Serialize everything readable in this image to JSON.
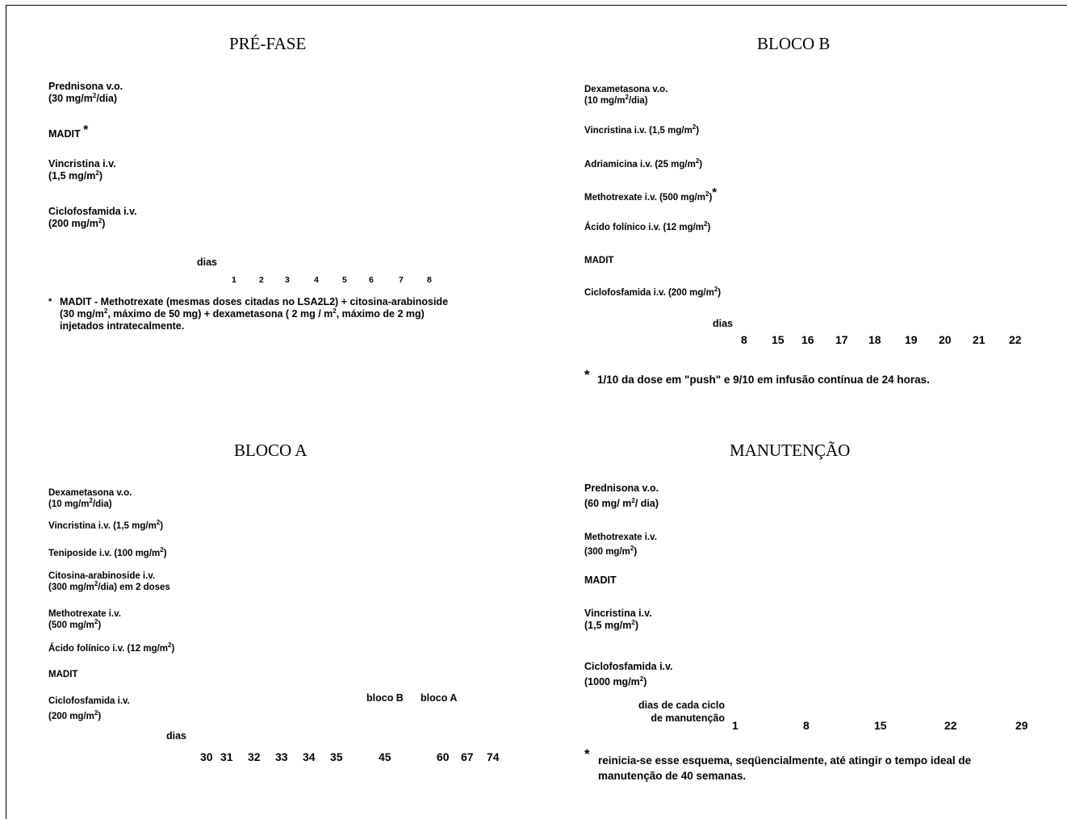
{
  "prefase": {
    "title": "PRÉ-FASE",
    "drugs": [
      {
        "line1": "Prednisona v.o.",
        "line2a": "(30 mg/m",
        "sup": "2",
        "line2b": "/dia)"
      },
      {
        "name": "MADIT",
        "star": "*"
      },
      {
        "line1": "Vincristina  i.v.",
        "line2a": "(1,5 mg/m",
        "sup": "2",
        "line2b": ")"
      },
      {
        "line1": "Ciclofosfamida  i.v.",
        "line2a": "(200 mg/m",
        "sup": "2",
        "line2b": ")"
      }
    ],
    "dias_label": "dias",
    "days": [
      "1",
      "2",
      "3",
      "4",
      "5",
      "6",
      "7",
      "8"
    ],
    "footnote": {
      "star": "*",
      "l1": "MADIT - Methotrexate (mesmas doses citadas no LSA2L2) + citosina-arabinoside",
      "l2a": "(30 mg/m",
      "sup1": "2",
      "l2b": ", máximo de 50 mg) + dexametasona ( 2 mg / m",
      "sup2": "2",
      "l2c": ", máximo de 2 mg)",
      "l3": "injetados intratecalmente."
    }
  },
  "blocob": {
    "title": "BLOCO B",
    "drugs": [
      {
        "line1": "Dexametasona  v.o.",
        "line2a": "(10 mg/m",
        "sup": "2",
        "line2b": "/dia)"
      },
      {
        "a": "Vincristina  i.v. (1,5 mg/m",
        "sup": "2",
        "b": ")"
      },
      {
        "a": "Adriamicina i.v. (25 mg/m",
        "sup": "2",
        "b": ")"
      },
      {
        "a": "Methotrexate  i.v. (500 mg/m",
        "sup": "2",
        "b": ")",
        "star": "*"
      },
      {
        "a": "Ácido folínico i.v. (12 mg/m",
        "sup": "2",
        "b": ")"
      },
      {
        "name": "MADIT"
      },
      {
        "a": "Ciclofosfamida i.v. (200 mg/m",
        "sup": "2",
        "b": ")"
      }
    ],
    "dias_label": "dias",
    "days": [
      "8",
      "15",
      "16",
      "17",
      "18",
      "19",
      "20",
      "21",
      "22"
    ],
    "footnote": {
      "star": "*",
      "text": "1/10 da dose em \"push\" e 9/10 em infusão contínua de 24 horas."
    }
  },
  "blocoa": {
    "title": "BLOCO A",
    "drugs": [
      {
        "line1": "Dexametasona  v.o.",
        "line2a": "(10 mg/m",
        "sup": "2",
        "line2b": "/dia)"
      },
      {
        "a": "Vincristina  i.v. (1,5 mg/m",
        "sup": "2",
        "b": ")"
      },
      {
        "a": "Teniposide i.v. (100 mg/m",
        "sup": "2",
        "b": ")"
      },
      {
        "line1": "Citosina-arabinoside  i.v.",
        "line2a": "(300 mg/m",
        "sup": "2",
        "line2b": "/dia) em 2 doses"
      },
      {
        "line1": "Methotrexate  i.v.",
        "line2a": "(500 mg/m",
        "sup": "2",
        "line2b": ")"
      },
      {
        "a": "Ácido folínico i.v. (12 mg/m",
        "sup": "2",
        "b": ")"
      },
      {
        "name": "MADIT"
      },
      {
        "line1": "Ciclofosfamida i.v.",
        "line2a": "(200 mg/m",
        "sup": "2",
        "line2b": ")"
      }
    ],
    "bloco_b_label": "bloco B",
    "bloco_a_label": "bloco A",
    "dias_label": "dias",
    "days": [
      "30",
      "31",
      "32",
      "33",
      "34",
      "35",
      "45",
      "60",
      "67",
      "74"
    ]
  },
  "manut": {
    "title": "MANUTENÇÃO",
    "drugs": [
      {
        "line1": "Prednisona v.o.",
        "line2a": "(60 mg/ m",
        "sup": "2",
        "line2b": "/ dia)"
      },
      {
        "line1": "Methotrexate  i.v.",
        "line2a": "(300 mg/m",
        "sup": "2",
        "line2b": ")"
      },
      {
        "name": "MADIT"
      },
      {
        "line1": "Vincristina  i.v.",
        "line2a": "(1,5 mg/m",
        "sup": "2",
        "line2b": ")"
      },
      {
        "line1": "Ciclofosfamida i.v.",
        "line2a": "(1000 mg/m",
        "sup": "2",
        "line2b": ")"
      }
    ],
    "dias_l1": "dias de cada ciclo",
    "dias_l2": "de manutenção",
    "days": [
      "1",
      "8",
      "15",
      "22",
      "29"
    ],
    "footnote": {
      "star": "*",
      "l1": "reinicia-se esse esquema, seqüencialmente, até atingir o tempo ideal de",
      "l2": "manutenção de 40 semanas."
    }
  }
}
